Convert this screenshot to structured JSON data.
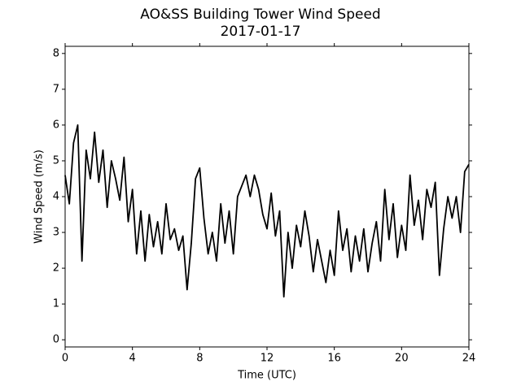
{
  "chart_data": {
    "type": "line",
    "title": "AO&SS Building Tower Wind Speed",
    "subtitle": "2017-01-17",
    "xlabel": "Time (UTC)",
    "ylabel": "Wind Speed (m/s)",
    "xlim": [
      0,
      24
    ],
    "xticks": [
      0,
      4,
      8,
      12,
      16,
      20,
      24
    ],
    "ylim": [
      -0.2,
      8.2
    ],
    "yticks": [
      0,
      1,
      2,
      3,
      4,
      5,
      6,
      7,
      8
    ],
    "grid": false,
    "x": [
      0,
      0.25,
      0.5,
      0.75,
      1,
      1.25,
      1.5,
      1.75,
      2,
      2.25,
      2.5,
      2.75,
      3,
      3.25,
      3.5,
      3.75,
      4,
      4.25,
      4.5,
      4.75,
      5,
      5.25,
      5.5,
      5.75,
      6,
      6.25,
      6.5,
      6.75,
      7,
      7.25,
      7.5,
      7.75,
      8,
      8.25,
      8.5,
      8.75,
      9,
      9.25,
      9.5,
      9.75,
      10,
      10.25,
      10.5,
      10.75,
      11,
      11.25,
      11.5,
      11.75,
      12,
      12.25,
      12.5,
      12.75,
      13,
      13.25,
      13.5,
      13.75,
      14,
      14.25,
      14.5,
      14.75,
      15,
      15.25,
      15.5,
      15.75,
      16,
      16.25,
      16.5,
      16.75,
      17,
      17.25,
      17.5,
      17.75,
      18,
      18.25,
      18.5,
      18.75,
      19,
      19.25,
      19.5,
      19.75,
      20,
      20.25,
      20.5,
      20.75,
      21,
      21.25,
      21.5,
      21.75,
      22,
      22.25,
      22.5,
      22.75,
      23,
      23.25,
      23.5,
      23.75,
      24
    ],
    "series": [
      {
        "name": "Wind Speed",
        "color": "#000000",
        "values": [
          4.6,
          3.8,
          5.5,
          6.0,
          2.2,
          5.3,
          4.5,
          5.8,
          4.4,
          5.3,
          3.7,
          5.0,
          4.5,
          3.9,
          5.1,
          3.3,
          4.2,
          2.4,
          3.6,
          2.2,
          3.5,
          2.6,
          3.3,
          2.4,
          3.8,
          2.8,
          3.1,
          2.5,
          2.9,
          1.4,
          2.7,
          4.5,
          4.8,
          3.4,
          2.4,
          3.0,
          2.2,
          3.8,
          2.7,
          3.6,
          2.4,
          4.0,
          4.3,
          4.6,
          4.0,
          4.6,
          4.2,
          3.5,
          3.1,
          4.1,
          2.9,
          3.6,
          1.2,
          3.0,
          2.0,
          3.2,
          2.6,
          3.6,
          2.9,
          1.9,
          2.8,
          2.2,
          1.6,
          2.5,
          1.8,
          3.6,
          2.5,
          3.1,
          1.9,
          2.9,
          2.2,
          3.1,
          1.9,
          2.7,
          3.3,
          2.2,
          4.2,
          2.8,
          3.8,
          2.3,
          3.2,
          2.5,
          4.6,
          3.2,
          3.9,
          2.8,
          4.2,
          3.7,
          4.4,
          1.8,
          3.1,
          4.0,
          3.4,
          4.0,
          3.0,
          4.7,
          4.9
        ]
      }
    ]
  }
}
